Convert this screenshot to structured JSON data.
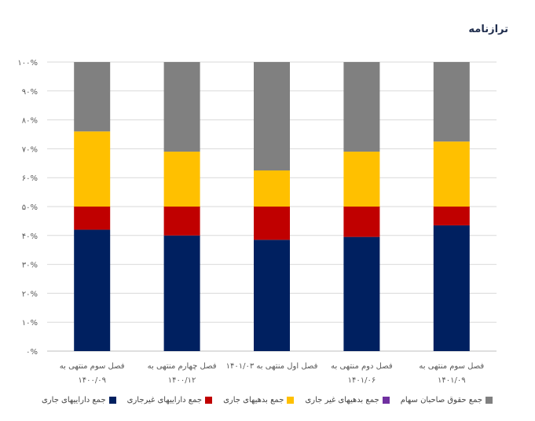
{
  "chart_data": {
    "type": "bar",
    "stacked": true,
    "title": "ترازنامه",
    "categories": [
      [
        "فصل سوم منتهی به",
        "۱۴۰۰/۰۹"
      ],
      [
        "فصل چهارم منتهی به",
        "۱۴۰۰/۱۲"
      ],
      [
        "فصل اول منتهی به ۱۴۰۱/۰۳",
        ""
      ],
      [
        "فصل دوم منتهی به",
        "۱۴۰۱/۰۶"
      ],
      [
        "فصل سوم منتهی به",
        "۱۴۰۱/۰۹"
      ]
    ],
    "y_ticks": [
      "۰%",
      "۱۰%",
      "۲۰%",
      "۳۰%",
      "۴۰%",
      "۵۰%",
      "۶۰%",
      "۷۰%",
      "۸۰%",
      "۹۰%",
      "۱۰۰%"
    ],
    "ylim": [
      0,
      100
    ],
    "grid": true,
    "legend_position": "bottom",
    "series": [
      {
        "name": "جمع داراییهای جاری",
        "color": "#002060",
        "values": [
          42,
          40,
          38.5,
          39.5,
          43.5
        ]
      },
      {
        "name": "جمع داراییهای غیرجاری",
        "color": "#c00000",
        "values": [
          8,
          10,
          11.5,
          10.5,
          6.5
        ]
      },
      {
        "name": "جمع بدهیهای جاری",
        "color": "#ffc000",
        "values": [
          26,
          19,
          12.5,
          19,
          22.5
        ]
      },
      {
        "name": "جمع بدهیهای غیر جاری",
        "color": "#7030a0",
        "values": [
          0,
          0,
          0,
          0,
          0
        ]
      },
      {
        "name": "جمع حقوق صاحبان سهام",
        "color": "#808080",
        "values": [
          24,
          31,
          37.5,
          31,
          27.5
        ]
      }
    ]
  }
}
